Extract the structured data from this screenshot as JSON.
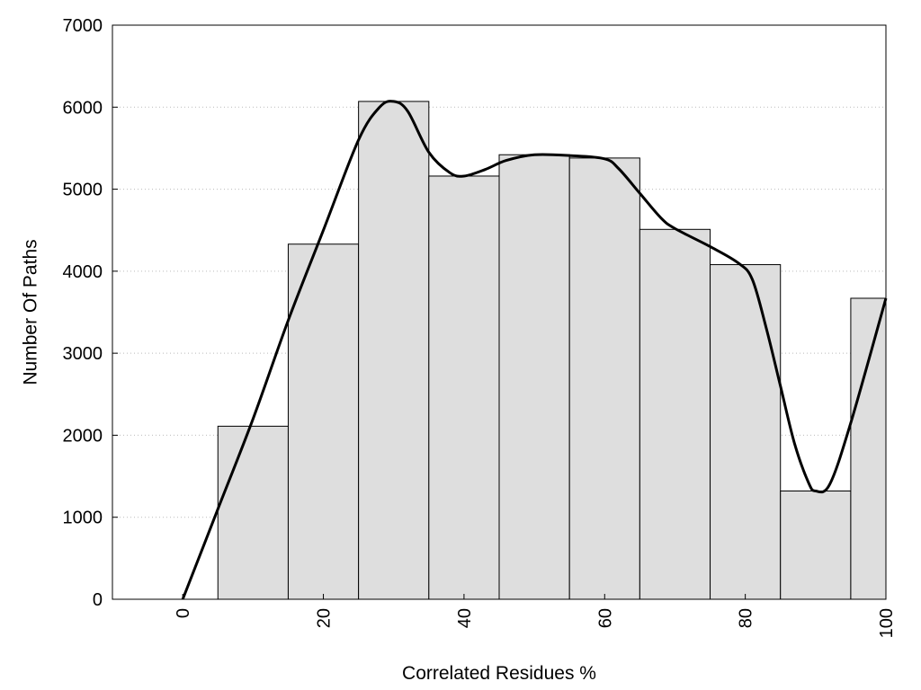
{
  "chart_data": {
    "type": "bar",
    "xlabel": "Correlated Residues %",
    "ylabel": "Number Of Paths",
    "xlim": [
      -10,
      100
    ],
    "ylim": [
      0,
      7000
    ],
    "x_ticks": [
      0,
      20,
      40,
      60,
      80,
      100
    ],
    "x_tick_labels": [
      "0",
      "20",
      "40",
      "60",
      "80",
      "100"
    ],
    "y_ticks": [
      0,
      1000,
      2000,
      3000,
      4000,
      5000,
      6000,
      7000
    ],
    "y_tick_labels": [
      "0",
      "1000",
      "2000",
      "3000",
      "4000",
      "5000",
      "6000",
      "7000"
    ],
    "grid": "horizontal dotted",
    "bar_color": "#dedede",
    "bar_edge_color": "#000000",
    "line_color": "#000000",
    "bars": [
      {
        "center": 10,
        "width": 10,
        "value": 2110
      },
      {
        "center": 20,
        "width": 10,
        "value": 4330
      },
      {
        "center": 30,
        "width": 10,
        "value": 6070
      },
      {
        "center": 40,
        "width": 10,
        "value": 5160
      },
      {
        "center": 50,
        "width": 10,
        "value": 5420
      },
      {
        "center": 60,
        "width": 10,
        "value": 5380
      },
      {
        "center": 70,
        "width": 10,
        "value": 4510
      },
      {
        "center": 80,
        "width": 10,
        "value": 4080
      },
      {
        "center": 90,
        "width": 10,
        "value": 1320
      },
      {
        "center": 100,
        "width": 10,
        "value": 3670
      }
    ],
    "curve": {
      "x": [
        0,
        5,
        10,
        15,
        20,
        25,
        28,
        30,
        32,
        35,
        38,
        40,
        43,
        46,
        50,
        55,
        60,
        62,
        65,
        68,
        70,
        75,
        79,
        81,
        83,
        85,
        87,
        89,
        90,
        92,
        95,
        100
      ],
      "y": [
        0,
        1100,
        2200,
        3400,
        4500,
        5600,
        6000,
        6070,
        5950,
        5450,
        5200,
        5160,
        5240,
        5350,
        5420,
        5410,
        5370,
        5250,
        4950,
        4650,
        4520,
        4300,
        4100,
        3900,
        3300,
        2600,
        1900,
        1420,
        1320,
        1400,
        2150,
        3670
      ]
    }
  }
}
